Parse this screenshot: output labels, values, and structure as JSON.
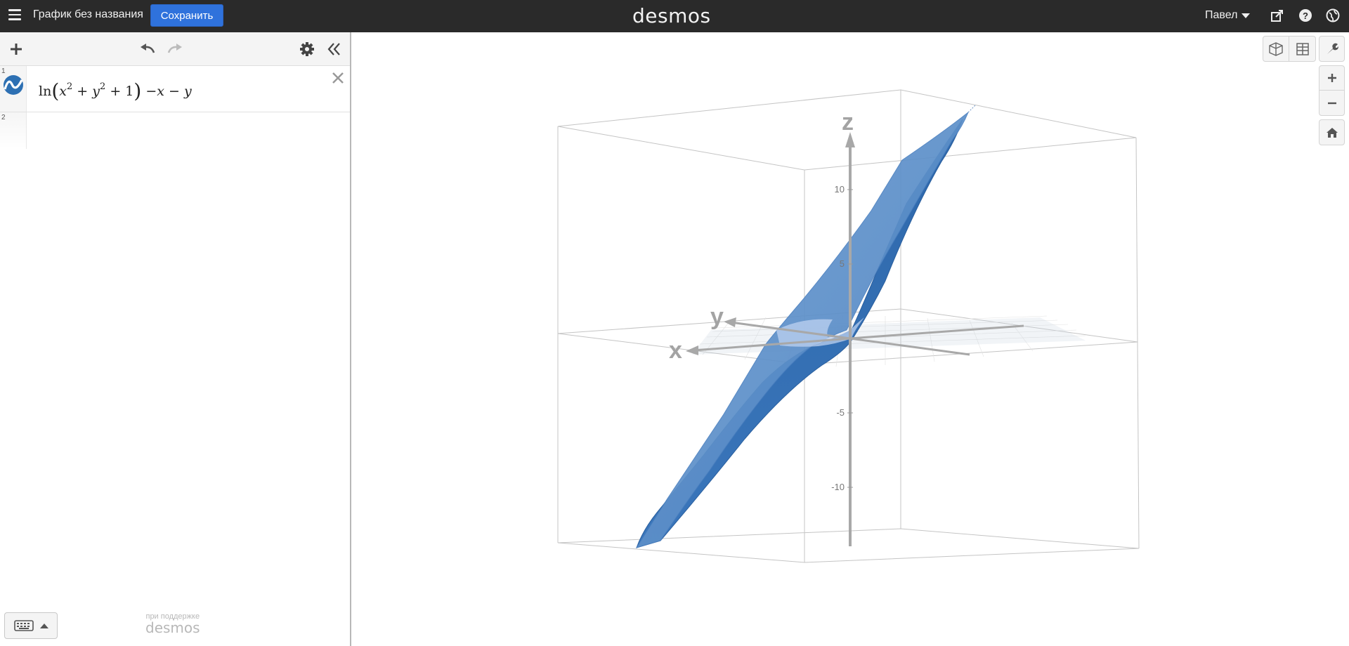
{
  "header": {
    "graph_title": "График без названия",
    "save_label": "Сохранить",
    "logo": "desmos",
    "user_name": "Павел"
  },
  "expressions": [
    {
      "index": "1",
      "fn": "ln",
      "inner_x": "x",
      "inner_exp": "2",
      "inner_y": "y",
      "plus_one": "+ 1",
      "tail": "−x − y"
    },
    {
      "index": "2"
    }
  ],
  "footer": {
    "powered_by": "при поддержке",
    "brand": "desmos"
  },
  "graph": {
    "axis_labels": {
      "x": "x",
      "y": "y",
      "z": "z"
    },
    "z_ticks": [
      {
        "value": 10,
        "label": "10"
      },
      {
        "value": 5,
        "label": "5"
      },
      {
        "value": -5,
        "label": "-5"
      },
      {
        "value": -10,
        "label": "-10"
      }
    ],
    "surface_color": "#2d70b3"
  },
  "colors": {
    "header_bg": "#2a2a2a",
    "accent": "#2f72dc"
  },
  "icons": {
    "menu": "hamburger-icon",
    "share": "share-icon",
    "help": "help-icon",
    "language": "globe-icon",
    "add": "plus-icon",
    "undo": "undo-icon",
    "redo": "redo-icon",
    "settings": "gear-icon",
    "collapse": "double-chevron-left-icon",
    "delete": "close-icon",
    "keyboard": "keyboard-icon",
    "wrench": "wrench-icon",
    "zoom_in": "plus-icon",
    "zoom_out": "minus-icon",
    "home": "home-icon",
    "cube_view": "cube-icon",
    "table_view": "grid-icon"
  }
}
